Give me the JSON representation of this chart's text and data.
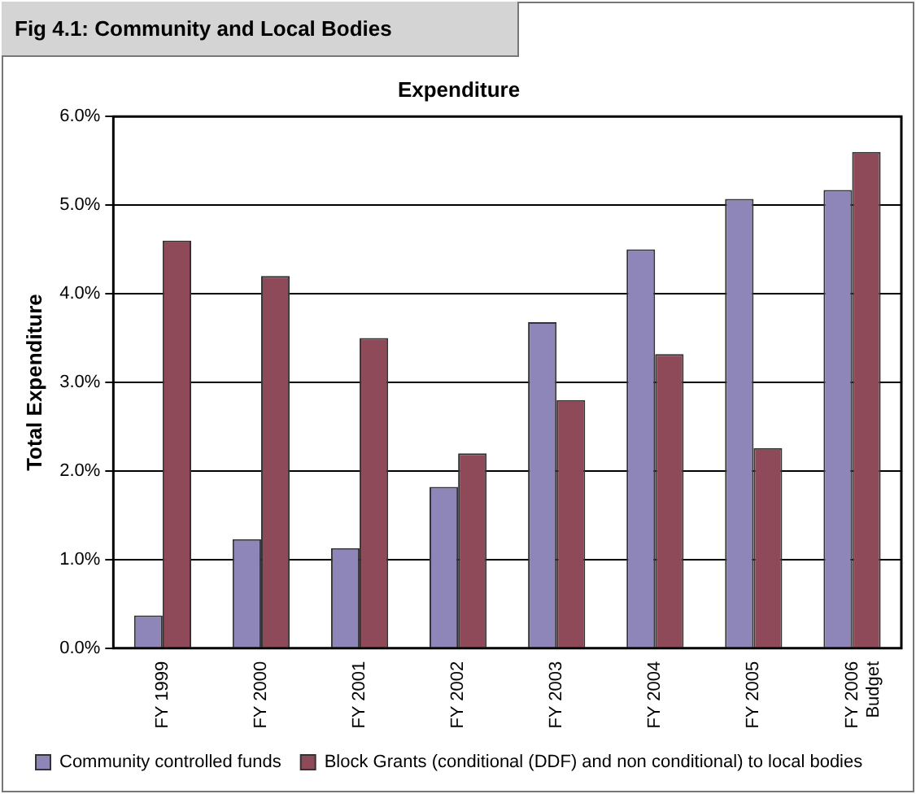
{
  "chart_data": {
    "type": "bar",
    "title": "Expenditure",
    "ylabel": "Total Expenditure",
    "annotations": [
      "Fig 4.1: Community and Local Bodies"
    ],
    "categories": [
      "FY 1999",
      "FY 2000",
      "FY 2001",
      "FY 2002",
      "FY 2003",
      "FY 2004",
      "FY 2005",
      "FY 2006\nBudget"
    ],
    "series": [
      {
        "name": "Community controlled funds",
        "color": "#8e86b8",
        "values": [
          0.37,
          1.23,
          1.13,
          1.82,
          3.68,
          4.5,
          5.07,
          5.17
        ]
      },
      {
        "name": "Block Grants (conditional (DDF) and non conditional) to local bodies",
        "color": "#8e4a58",
        "values": [
          4.6,
          4.2,
          3.5,
          2.2,
          2.8,
          3.32,
          2.26,
          5.6
        ]
      }
    ],
    "ylim": [
      0,
      6
    ],
    "yticks": [
      {
        "value": 0,
        "label": "0.0%"
      },
      {
        "value": 1,
        "label": "1.0%"
      },
      {
        "value": 2,
        "label": "2.0%"
      },
      {
        "value": 3,
        "label": "3.0%"
      },
      {
        "value": 4,
        "label": "4.0%"
      },
      {
        "value": 5,
        "label": "5.0%"
      },
      {
        "value": 6,
        "label": "6.0%"
      }
    ],
    "grid": "y",
    "legend": "bottom left"
  }
}
